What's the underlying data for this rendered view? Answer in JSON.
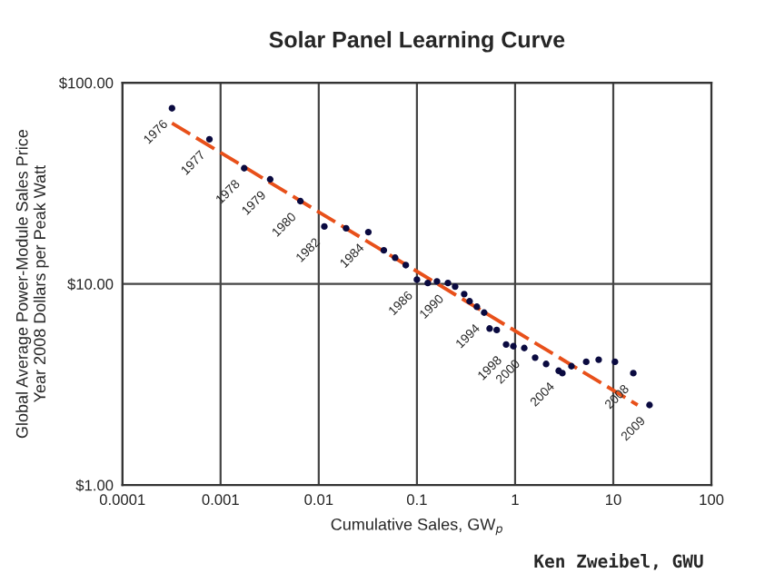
{
  "chart_data": {
    "type": "scatter",
    "title": "Solar Panel Learning Curve",
    "xlabel": "Cumulative Sales, GW$_{p}$",
    "ylabel": "Global Average Power-Module Sales Price\nYear 2008 Dollars per Peak Watt",
    "log": "xy",
    "grid": true,
    "xlim": [
      0.0001,
      100
    ],
    "xticks": [
      0.0001,
      0.001,
      0.01,
      0.1,
      1,
      10,
      100
    ],
    "ylim": [
      1,
      100
    ],
    "yticks": [
      {
        "value": 1,
        "label": "$1.00"
      },
      {
        "value": 10,
        "label": "$10.00"
      },
      {
        "value": 100,
        "label": "$100.00"
      }
    ],
    "series": [
      {
        "marker": "circle",
        "color": "#0a0a40",
        "x": [
          0.00032,
          0.00077,
          0.00174,
          0.0032,
          0.0065,
          0.0114,
          0.019,
          0.032,
          0.046,
          0.06,
          0.077,
          0.1,
          0.129,
          0.16,
          0.207,
          0.245,
          0.303,
          0.344,
          0.408,
          0.484,
          0.55,
          0.65,
          0.81,
          0.96,
          1.24,
          1.6,
          2.07,
          2.78,
          3.03,
          3.75,
          5.3,
          7.1,
          10.4,
          16,
          23.4
        ],
        "values": [
          74.7,
          52.4,
          37.6,
          33.1,
          25.8,
          19.3,
          18.9,
          18.1,
          14.7,
          13.5,
          12.4,
          10.5,
          10.1,
          10.3,
          10.1,
          9.7,
          8.9,
          8.2,
          7.7,
          7.2,
          6.0,
          5.9,
          5.0,
          4.9,
          4.8,
          4.3,
          4.0,
          3.7,
          3.6,
          3.9,
          4.1,
          4.2,
          4.1,
          3.6,
          2.5
        ]
      },
      {
        "type": "line",
        "marker": "none",
        "color": "#e8501a",
        "line_style": "dashed",
        "x": [
          0.00032,
          17.7
        ],
        "values": [
          63,
          2.5
        ]
      }
    ],
    "annotations": [
      {
        "text": "1976",
        "x": 0.00032,
        "y": 74.7
      },
      {
        "text": "1977",
        "x": 0.00077,
        "y": 52.4
      },
      {
        "text": "1978",
        "x": 0.00174,
        "y": 37.6
      },
      {
        "text": "1979",
        "x": 0.0032,
        "y": 33.1
      },
      {
        "text": "1980",
        "x": 0.0065,
        "y": 25.8
      },
      {
        "text": "1982",
        "x": 0.0114,
        "y": 19.3
      },
      {
        "text": "1984",
        "x": 0.032,
        "y": 18.1
      },
      {
        "text": "1986",
        "x": 0.1,
        "y": 10.5
      },
      {
        "text": "1990",
        "x": 0.207,
        "y": 10.1
      },
      {
        "text": "1994",
        "x": 0.484,
        "y": 7.2
      },
      {
        "text": "1998",
        "x": 0.81,
        "y": 5.0
      },
      {
        "text": "2000",
        "x": 1.24,
        "y": 4.8
      },
      {
        "text": "2004",
        "x": 2.78,
        "y": 3.7
      },
      {
        "text": "2008",
        "x": 16,
        "y": 3.6
      },
      {
        "text": "2009",
        "x": 23.4,
        "y": 2.5
      },
      "Ken Zweibel, GWU"
    ]
  }
}
